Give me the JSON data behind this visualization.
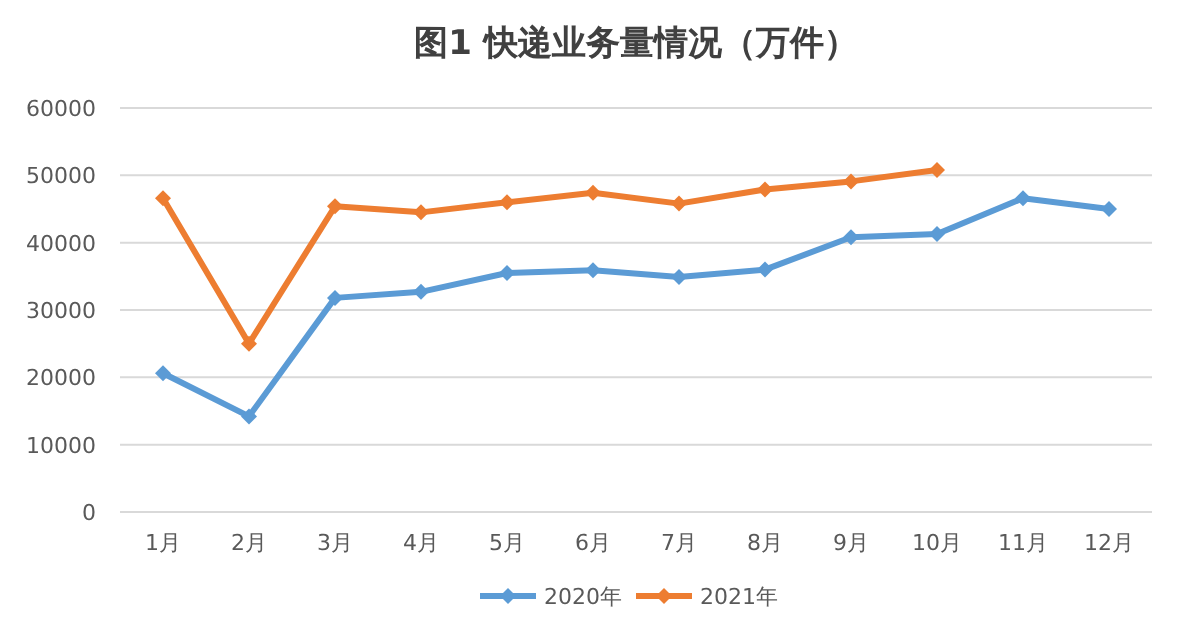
{
  "chart_data": {
    "type": "line",
    "title": "图1 快递业务量情况（万件）",
    "categories": [
      "1月",
      "2月",
      "3月",
      "4月",
      "5月",
      "6月",
      "7月",
      "8月",
      "9月",
      "10月",
      "11月",
      "12月"
    ],
    "series": [
      {
        "name": "2020年",
        "color": "#5b9bd5",
        "values": [
          20600,
          14200,
          31800,
          32700,
          35500,
          35900,
          34900,
          36000,
          40800,
          41300,
          46600,
          45000
        ]
      },
      {
        "name": "2021年",
        "color": "#ed7d31",
        "values": [
          46600,
          25000,
          45400,
          44500,
          46000,
          47400,
          45800,
          47900,
          49100,
          50800,
          null,
          null
        ]
      }
    ],
    "ylim": [
      0,
      60000
    ],
    "yticks": [
      0,
      10000,
      20000,
      30000,
      40000,
      50000,
      60000
    ],
    "grid": "y",
    "legend": "bottom",
    "marker": "diamond",
    "line_style": "solid"
  }
}
